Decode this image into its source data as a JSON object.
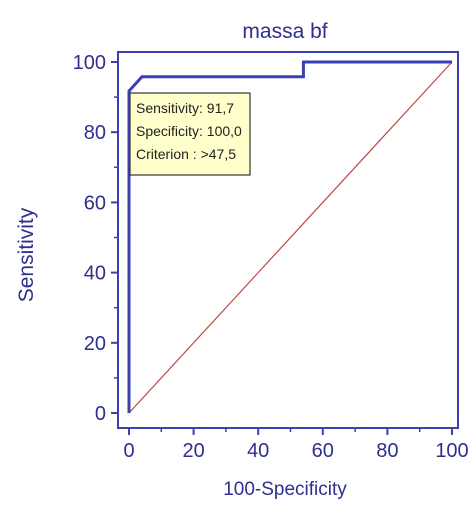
{
  "chart_data": {
    "type": "line",
    "title": "massa bf",
    "xlabel": "100-Specificity",
    "ylabel": "Sensitivity",
    "xlim": [
      0,
      100
    ],
    "ylim": [
      0,
      100
    ],
    "xticks": [
      0,
      20,
      40,
      60,
      80,
      100
    ],
    "yticks": [
      0,
      20,
      40,
      60,
      80,
      100
    ],
    "grid": false,
    "series": [
      {
        "color": "#3b3fb0",
        "x": [
          0,
          0,
          0,
          0,
          0,
          4,
          4,
          54,
          54,
          100
        ],
        "y": [
          0,
          8,
          20,
          28,
          91.7,
          95.8,
          95.8,
          95.8,
          100,
          100
        ]
      }
    ],
    "reference_line": {
      "color": "#c0473f",
      "x": [
        0,
        100
      ],
      "y": [
        0,
        100
      ]
    },
    "annotation": {
      "lines": [
        "Sensitivity: 91,7",
        "Specificity: 100,0",
        "Criterion : >47,5"
      ],
      "background": "#ffffcc",
      "border": "#333333"
    },
    "colors": {
      "axis": "#3b3fb0",
      "text": "#2e2f8f"
    }
  }
}
